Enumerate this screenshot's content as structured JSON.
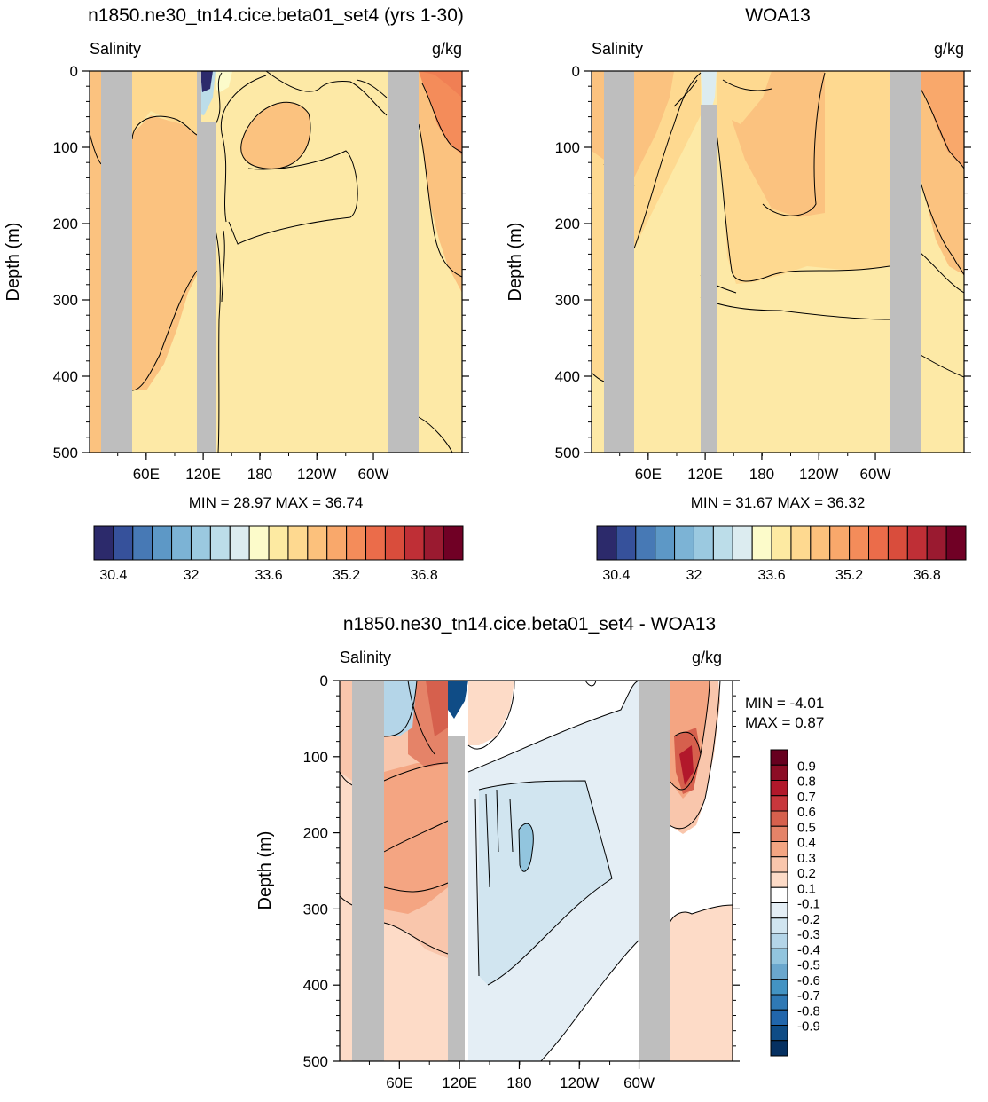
{
  "chart_data": [
    {
      "type": "heatmap",
      "title": "n1850.ne30_tn14.cice.beta01_set4 (yrs 1-30)",
      "left_string": "Salinity",
      "right_string": "g/kg",
      "ylabel": "Depth (m)",
      "xticks": [
        "60E",
        "120E",
        "180",
        "120W",
        "60W"
      ],
      "yticks": [
        "0",
        "100",
        "200",
        "300",
        "400",
        "500"
      ],
      "ylim": [
        500,
        0
      ],
      "stats": "MIN =  28.97  MAX =  36.74",
      "colorbar": {
        "orientation": "horizontal",
        "labels": [
          "30.4",
          "32",
          "33.6",
          "35.2",
          "36.8"
        ],
        "colors": [
          "#2c2a6b",
          "#36519b",
          "#4779b5",
          "#5d98c6",
          "#7cb3d5",
          "#9bc9e0",
          "#bcdde9",
          "#dcecf0",
          "#fcfbca",
          "#fdeaa2",
          "#fed990",
          "#fcc17c",
          "#f9a86b",
          "#f48c5a",
          "#eb6c4a",
          "#d94d3c",
          "#bf2f36",
          "#9a1a30",
          "#700025"
        ]
      }
    },
    {
      "type": "heatmap",
      "title": "WOA13",
      "left_string": "Salinity",
      "right_string": "g/kg",
      "ylabel": "Depth (m)",
      "xticks": [
        "60E",
        "120E",
        "180",
        "120W",
        "60W"
      ],
      "yticks": [
        "0",
        "100",
        "200",
        "300",
        "400",
        "500"
      ],
      "ylim": [
        500,
        0
      ],
      "stats": "MIN =  31.67  MAX =  36.32",
      "colorbar": {
        "orientation": "horizontal",
        "labels": [
          "30.4",
          "32",
          "33.6",
          "35.2",
          "36.8"
        ],
        "colors": [
          "#2c2a6b",
          "#36519b",
          "#4779b5",
          "#5d98c6",
          "#7cb3d5",
          "#9bc9e0",
          "#bcdde9",
          "#dcecf0",
          "#fcfbca",
          "#fdeaa2",
          "#fed990",
          "#fcc17c",
          "#f9a86b",
          "#f48c5a",
          "#eb6c4a",
          "#d94d3c",
          "#bf2f36",
          "#9a1a30",
          "#700025"
        ]
      }
    },
    {
      "type": "heatmap",
      "title": "n1850.ne30_tn14.cice.beta01_set4 - WOA13",
      "left_string": "Salinity",
      "right_string": "g/kg",
      "ylabel": "Depth (m)",
      "xticks": [
        "60E",
        "120E",
        "180",
        "120W",
        "60W"
      ],
      "yticks": [
        "0",
        "100",
        "200",
        "300",
        "400",
        "500"
      ],
      "ylim": [
        500,
        0
      ],
      "stats_min": "MIN =  -4.01",
      "stats_max": "MAX =   0.87",
      "colorbar": {
        "orientation": "vertical",
        "labels": [
          "0.9",
          "0.8",
          "0.7",
          "0.6",
          "0.5",
          "0.4",
          "0.3",
          "0.2",
          "0.1",
          "-0.1",
          "-0.2",
          "-0.3",
          "-0.4",
          "-0.5",
          "-0.6",
          "-0.7",
          "-0.8",
          "-0.9"
        ],
        "colors": [
          "#67001f",
          "#8c0d25",
          "#b2182b",
          "#c8373c",
          "#d6604d",
          "#e58368",
          "#f4a582",
          "#f9c6ac",
          "#fddbc7",
          "#ffffff",
          "#e4eef5",
          "#d1e5f0",
          "#b4d5e8",
          "#92c5de",
          "#6aa7cd",
          "#4393c3",
          "#2f79b5",
          "#2166ac",
          "#0f4c86",
          "#053061"
        ]
      }
    }
  ]
}
